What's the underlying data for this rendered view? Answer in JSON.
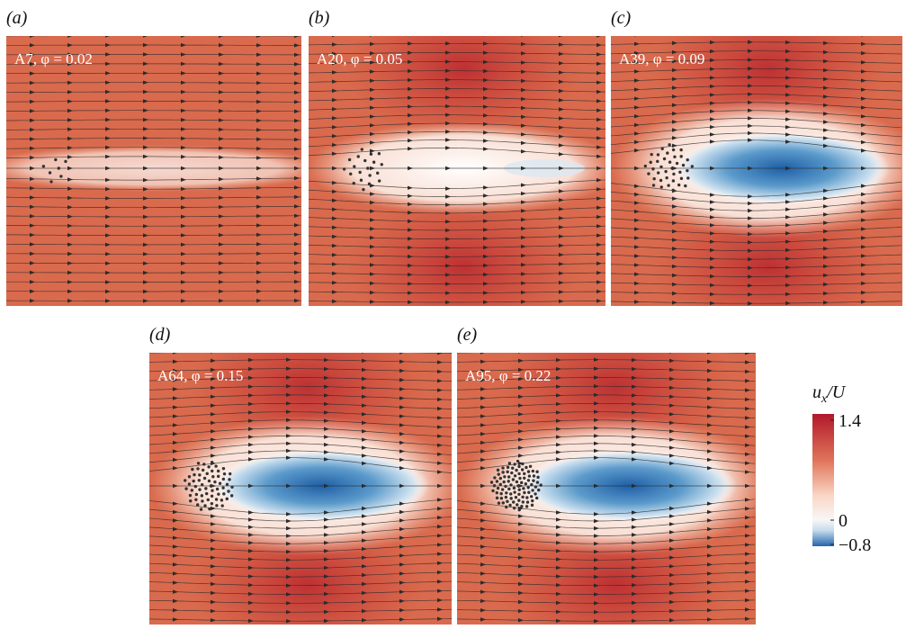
{
  "panels": [
    {
      "label": "(a)",
      "annotation": "A7, φ = 0.02"
    },
    {
      "label": "(b)",
      "annotation": "A20, φ = 0.05"
    },
    {
      "label": "(c)",
      "annotation": "A39, φ = 0.09"
    },
    {
      "label": "(d)",
      "annotation": "A64, φ = 0.15"
    },
    {
      "label": "(e)",
      "annotation": "A95, φ = 0.22"
    }
  ],
  "colorbar": {
    "title": {
      "base": "u",
      "sub": "x",
      "rest": "/U"
    },
    "ticks": [
      1.4,
      0,
      {
        "value": -0.8,
        "label": "−0.8"
      }
    ]
  }
}
